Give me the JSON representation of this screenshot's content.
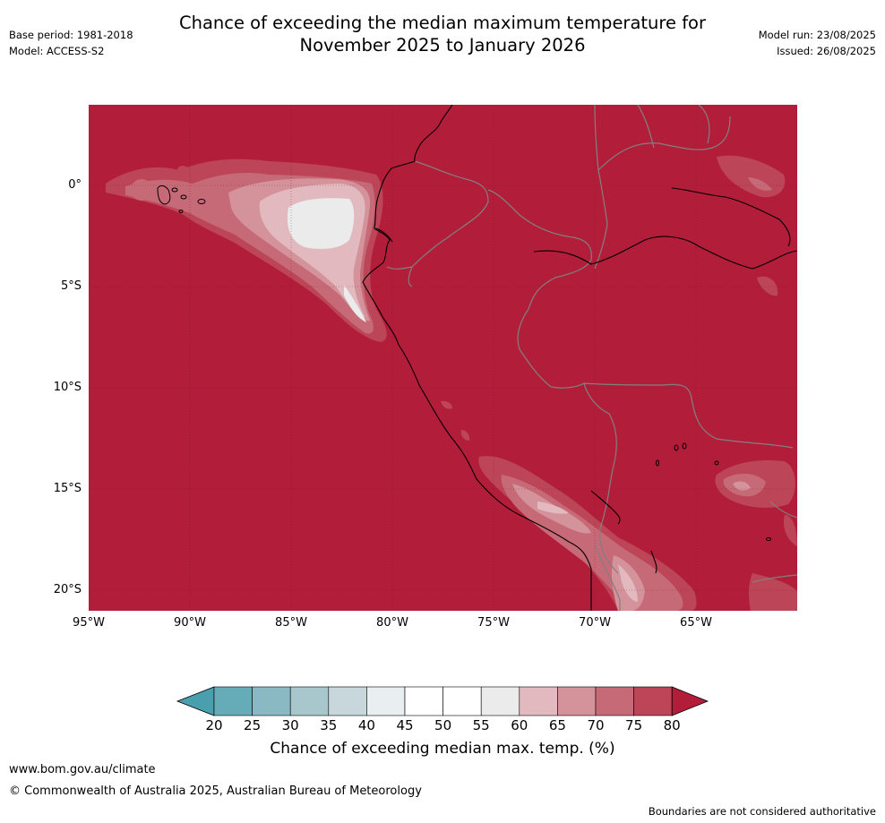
{
  "title_line1": "Chance of exceeding the median maximum temperature for",
  "title_line2": "November 2025 to January 2026",
  "base_period": "Base period: 1981-2018",
  "model": "Model: ACCESS-S2",
  "model_run": "Model run: 23/08/2025",
  "issued": "Issued: 26/08/2025",
  "map": {
    "latitude_labels": [
      "0°",
      "5°S",
      "10°S",
      "15°S",
      "20°S"
    ],
    "longitude_labels": [
      "95°W",
      "90°W",
      "85°W",
      "80°W",
      "75°W",
      "70°W",
      "65°W"
    ],
    "base_color": "#b21e3a"
  },
  "colorbar": {
    "title": "Chance of exceeding median max. temp. (%)",
    "ticks": [
      "20",
      "25",
      "30",
      "35",
      "40",
      "45",
      "50",
      "55",
      "60",
      "65",
      "70",
      "75",
      "80"
    ],
    "under_color": "#4a9fae",
    "over_color": "#b21e3a",
    "colors": [
      "#66abb8",
      "#8ab9c4",
      "#a8c7cd",
      "#c8d7dc",
      "#e9eef0",
      "#ffffff",
      "#ffffff",
      "#ebebeb",
      "#e2b9bf",
      "#d4929b",
      "#c76a78",
      "#bc4557"
    ]
  },
  "footer": {
    "url": "www.bom.gov.au/climate",
    "copyright": "© Commonwealth of Australia 2025, Australian Bureau of Meteorology",
    "disclaimer": "Boundaries are not considered authoritative"
  }
}
